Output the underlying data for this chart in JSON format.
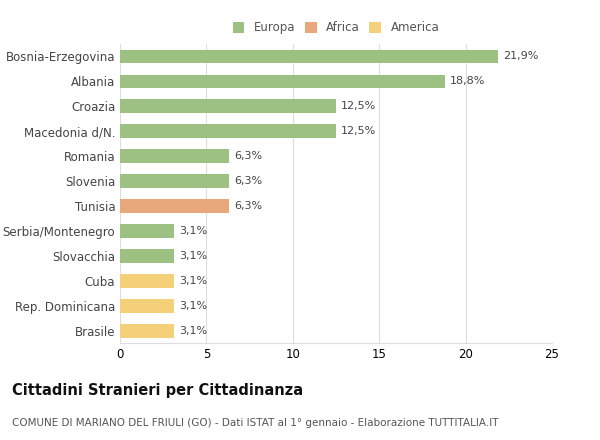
{
  "countries": [
    "Bosnia-Erzegovina",
    "Albania",
    "Croazia",
    "Macedonia d/N.",
    "Romania",
    "Slovenia",
    "Tunisia",
    "Serbia/Montenegro",
    "Slovacchia",
    "Cuba",
    "Rep. Dominicana",
    "Brasile"
  ],
  "values": [
    21.9,
    18.8,
    12.5,
    12.5,
    6.3,
    6.3,
    6.3,
    3.1,
    3.1,
    3.1,
    3.1,
    3.1
  ],
  "categories": [
    "Europa",
    "Europa",
    "Europa",
    "Europa",
    "Europa",
    "Europa",
    "Africa",
    "Europa",
    "Europa",
    "America",
    "America",
    "America"
  ],
  "colors": {
    "Europa": "#9dc183",
    "Africa": "#e8a87c",
    "America": "#f5d07a"
  },
  "legend_labels": [
    "Europa",
    "Africa",
    "America"
  ],
  "legend_colors": [
    "#9dc183",
    "#e8a87c",
    "#f5d07a"
  ],
  "title": "Cittadini Stranieri per Cittadinanza",
  "subtitle": "COMUNE DI MARIANO DEL FRIULI (GO) - Dati ISTAT al 1° gennaio - Elaborazione TUTTITALIA.IT",
  "xlim": [
    0,
    25
  ],
  "xticks": [
    0,
    5,
    10,
    15,
    20,
    25
  ],
  "background_color": "#ffffff",
  "grid_color": "#dddddd",
  "label_fontsize": 8.5,
  "value_fontsize": 8,
  "title_fontsize": 10.5,
  "subtitle_fontsize": 7.5,
  "legend_fontsize": 8.5,
  "bar_height": 0.55
}
